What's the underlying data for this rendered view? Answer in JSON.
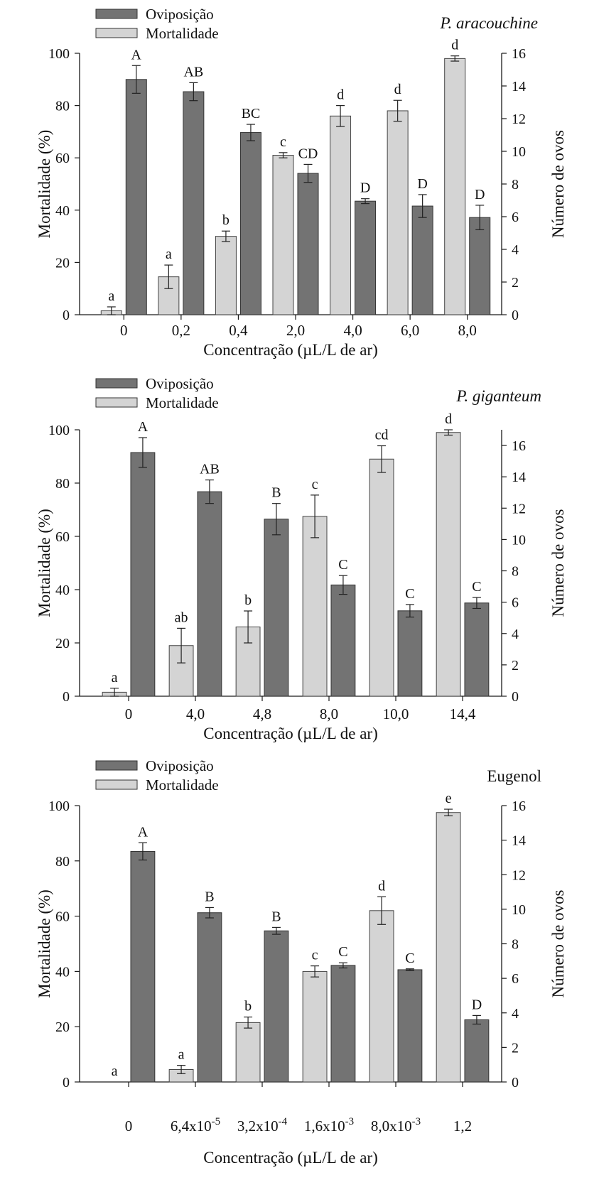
{
  "figure_colors": {
    "oviposicao": "#737373",
    "mortalidade": "#d4d4d4",
    "axis": "#1a1a1a"
  },
  "chart_data": [
    {
      "type": "bar",
      "title": "P. aracouchine",
      "title_italic": true,
      "xlabel": "Concentração (µL/L de ar)",
      "ylabel": "Mortalidade (%)",
      "y2label": "Número de ovos",
      "ylim": [
        0,
        100
      ],
      "yticks": [
        "0",
        "20",
        "40",
        "60",
        "80",
        "100"
      ],
      "y2lim": [
        0,
        16
      ],
      "y2ticks": [
        "0",
        "2",
        "4",
        "6",
        "8",
        "10",
        "12",
        "14",
        "16"
      ],
      "categories": [
        "0",
        "0,2",
        "0,4",
        "2,0",
        "4,0",
        "6,0",
        "8,0"
      ],
      "legend": [
        "Oviposição",
        "Mortalidade"
      ],
      "legend_position": "top-left",
      "series": [
        {
          "name": "Mortalidade",
          "axis": "left",
          "values": [
            1.5,
            14.5,
            30,
            61,
            76,
            78,
            98
          ],
          "errors": [
            1.5,
            4.5,
            2,
            1,
            4,
            4,
            1
          ],
          "letters": [
            "a",
            "a",
            "b",
            "c",
            "d",
            "d",
            "d"
          ]
        },
        {
          "name": "Oviposição",
          "axis": "right",
          "values": [
            14.4,
            13.65,
            11.15,
            8.65,
            6.95,
            6.65,
            5.95
          ],
          "errors": [
            0.85,
            0.55,
            0.5,
            0.55,
            0.15,
            0.7,
            0.75
          ],
          "letters": [
            "A",
            "AB",
            "BC",
            "CD",
            "D",
            "D",
            "D"
          ]
        }
      ]
    },
    {
      "type": "bar",
      "title": "P. giganteum",
      "title_italic": true,
      "xlabel": "Concentração (µL/L de ar)",
      "ylabel": "Mortalidade (%)",
      "y2label": "Número de ovos",
      "ylim": [
        0,
        100
      ],
      "yticks": [
        "0",
        "20",
        "40",
        "60",
        "80",
        "100"
      ],
      "y2lim": [
        0,
        17
      ],
      "y2ticks": [
        "0",
        "2",
        "4",
        "6",
        "8",
        "10",
        "12",
        "14",
        "16"
      ],
      "categories": [
        "0",
        "4,0",
        "4,8",
        "8,0",
        "10,0",
        "14,4"
      ],
      "legend": [
        "Oviposição",
        "Mortalidade"
      ],
      "legend_position": "top-left",
      "series": [
        {
          "name": "Mortalidade",
          "axis": "left",
          "values": [
            1.5,
            19,
            26,
            67.5,
            89,
            99
          ],
          "errors": [
            1.5,
            6.5,
            6,
            8,
            5,
            1
          ],
          "letters": [
            "a",
            "ab",
            "b",
            "c",
            "cd",
            "d"
          ]
        },
        {
          "name": "Oviposição",
          "axis": "right",
          "values": [
            15.55,
            13.05,
            11.3,
            7.1,
            5.45,
            5.95
          ],
          "errors": [
            0.95,
            0.75,
            1.0,
            0.6,
            0.4,
            0.35
          ],
          "letters": [
            "A",
            "AB",
            "B",
            "C",
            "C",
            "C"
          ]
        }
      ]
    },
    {
      "type": "bar",
      "title": "Eugenol",
      "title_italic": false,
      "xlabel": "Concentração (µL/L de ar)",
      "ylabel": "Mortalidade (%)",
      "y2label": "Número de ovos",
      "ylim": [
        0,
        100
      ],
      "yticks": [
        "0",
        "20",
        "40",
        "60",
        "80",
        "100"
      ],
      "y2lim": [
        0,
        16
      ],
      "y2ticks": [
        "0",
        "2",
        "4",
        "6",
        "8",
        "10",
        "12",
        "14",
        "16"
      ],
      "categories": [
        {
          "base": "0"
        },
        {
          "base": "6,4x10",
          "exp": "-5"
        },
        {
          "base": "3,2x10",
          "exp": "-4"
        },
        {
          "base": "1,6x10",
          "exp": "-3"
        },
        {
          "base": "8,0x10",
          "exp": "-3"
        },
        {
          "base": "1,2"
        }
      ],
      "legend": [
        "Oviposição",
        "Mortalidade"
      ],
      "legend_position": "top-left",
      "series": [
        {
          "name": "Mortalidade",
          "axis": "left",
          "values": [
            0,
            4.5,
            21.5,
            40,
            62,
            97.5
          ],
          "errors": [
            0,
            1.5,
            2,
            2,
            5,
            1.2
          ],
          "letters": [
            "a",
            "a",
            "b",
            "c",
            "d",
            "e"
          ]
        },
        {
          "name": "Oviposição",
          "axis": "right",
          "values": [
            13.35,
            9.8,
            8.75,
            6.75,
            6.5,
            3.6
          ],
          "errors": [
            0.5,
            0.3,
            0.2,
            0.15,
            0.05,
            0.25
          ],
          "letters": [
            "A",
            "B",
            "B",
            "C",
            "C",
            "D"
          ]
        }
      ]
    }
  ]
}
